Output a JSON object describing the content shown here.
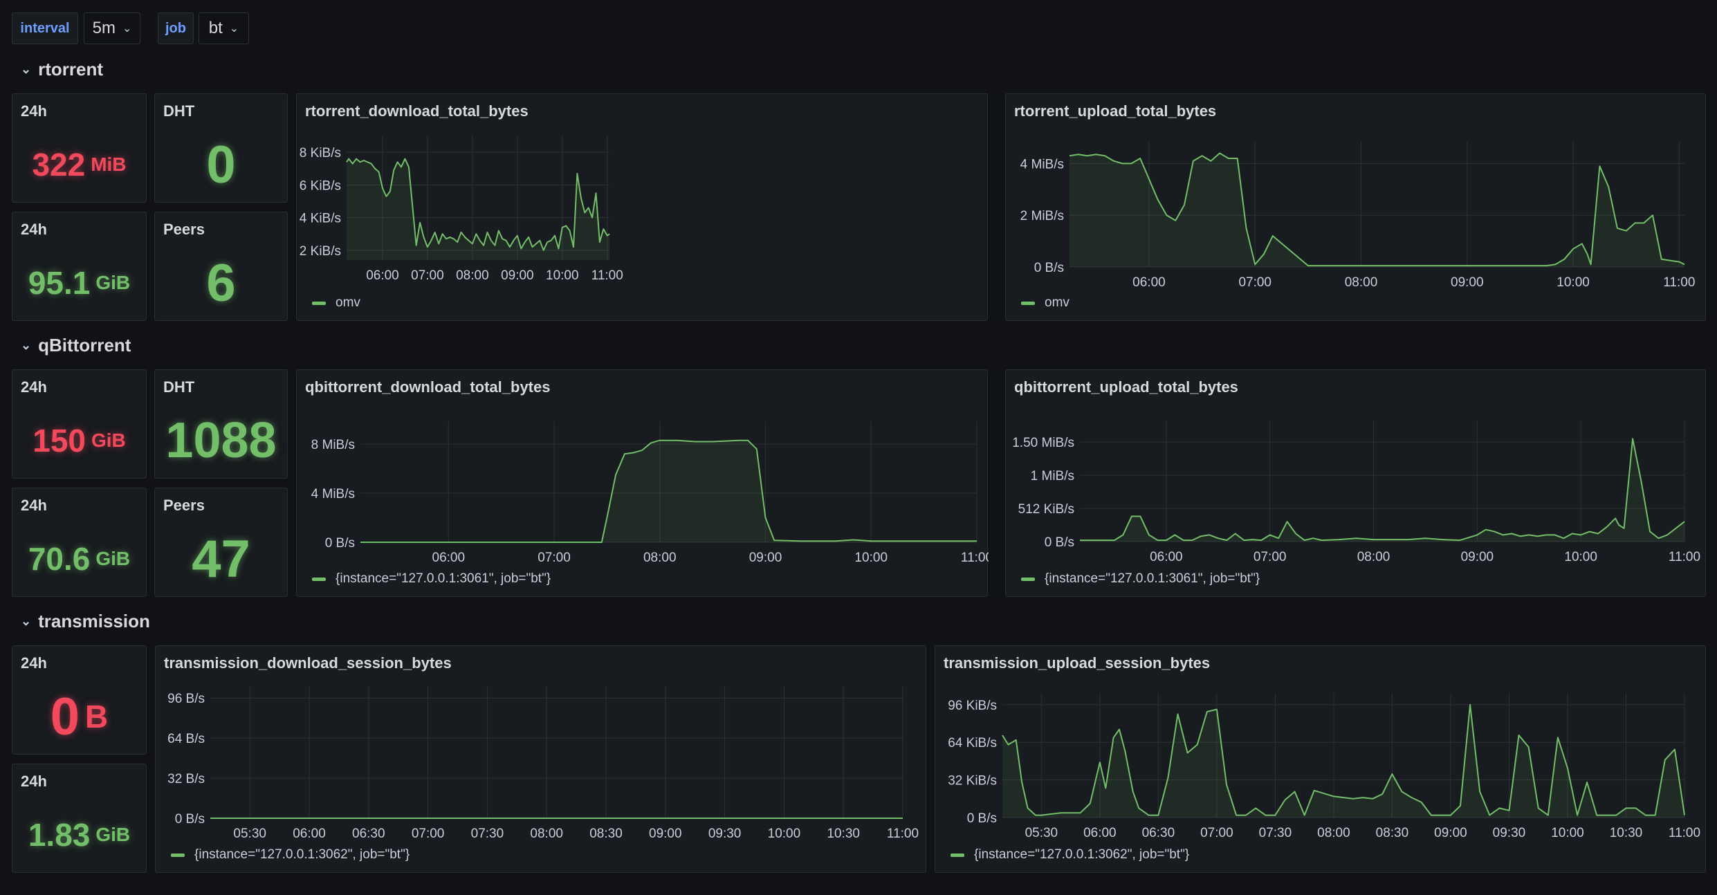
{
  "variables": [
    {
      "label": "interval",
      "value": "5m"
    },
    {
      "label": "job",
      "value": "bt"
    }
  ],
  "rows": [
    {
      "title": "rtorrent",
      "stats": {
        "download_24h": {
          "title": "24h",
          "value": "322",
          "unit": "MiB"
        },
        "upload_24h": {
          "title": "24h",
          "value": "95.1",
          "unit": "GiB"
        },
        "dht": {
          "title": "DHT",
          "value": "0"
        },
        "peers": {
          "title": "Peers",
          "value": "6"
        }
      },
      "charts": [
        {
          "title": "rtorrent_download_total_bytes",
          "legend": "omv"
        },
        {
          "title": "rtorrent_upload_total_bytes",
          "legend": "omv"
        }
      ]
    },
    {
      "title": "qBittorrent",
      "stats": {
        "download_24h": {
          "title": "24h",
          "value": "150",
          "unit": "GiB"
        },
        "upload_24h": {
          "title": "24h",
          "value": "70.6",
          "unit": "GiB"
        },
        "dht": {
          "title": "DHT",
          "value": "1088"
        },
        "peers": {
          "title": "Peers",
          "value": "47"
        }
      },
      "charts": [
        {
          "title": "qbittorrent_download_total_bytes",
          "legend": "{instance=\"127.0.0.1:3061\", job=\"bt\"}"
        },
        {
          "title": "qbittorrent_upload_total_bytes",
          "legend": "{instance=\"127.0.0.1:3061\", job=\"bt\"}"
        }
      ]
    },
    {
      "title": "transmission",
      "stats": {
        "download_24h": {
          "title": "24h",
          "value": "0",
          "unit": "B"
        },
        "upload_24h": {
          "title": "24h",
          "value": "1.83",
          "unit": "GiB"
        }
      },
      "charts": [
        {
          "title": "transmission_download_session_bytes",
          "legend": "{instance=\"127.0.0.1:3062\", job=\"bt\"}"
        },
        {
          "title": "transmission_upload_session_bytes",
          "legend": "{instance=\"127.0.0.1:3062\", job=\"bt\"}"
        }
      ]
    }
  ],
  "colors": {
    "series": "#73bf69",
    "down": "#f2495c",
    "up": "#73bf69",
    "grid": "#2c3036"
  },
  "chart_data": [
    {
      "id": "rt_down",
      "type": "area",
      "title": "rtorrent_download_total_bytes",
      "unit": "KiB/s",
      "x_ticks": [
        "06:00",
        "07:00",
        "08:00",
        "09:00",
        "10:00",
        "11:00"
      ],
      "x_range": [
        "05:12",
        "11:03"
      ],
      "y_ticks": [
        {
          "v": 2,
          "label": "2 KiB/s"
        },
        {
          "v": 4,
          "label": "4 KiB/s"
        },
        {
          "v": 6,
          "label": "6 KiB/s"
        },
        {
          "v": 8,
          "label": "8 KiB/s"
        }
      ],
      "ylim": [
        1.4,
        8.6
      ],
      "series": [
        {
          "name": "omv",
          "x": [
            "05:12",
            "05:15",
            "05:20",
            "05:25",
            "05:30",
            "05:35",
            "05:40",
            "05:45",
            "05:50",
            "05:55",
            "06:00",
            "06:05",
            "06:10",
            "06:15",
            "06:20",
            "06:25",
            "06:30",
            "06:35",
            "06:40",
            "06:45",
            "06:50",
            "06:55",
            "07:00",
            "07:05",
            "07:10",
            "07:15",
            "07:20",
            "07:25",
            "07:30",
            "07:35",
            "07:40",
            "07:45",
            "07:50",
            "07:55",
            "08:00",
            "08:05",
            "08:10",
            "08:15",
            "08:20",
            "08:25",
            "08:30",
            "08:35",
            "08:40",
            "08:45",
            "08:50",
            "08:55",
            "09:00",
            "09:05",
            "09:10",
            "09:15",
            "09:20",
            "09:25",
            "09:30",
            "09:35",
            "09:40",
            "09:45",
            "09:50",
            "09:55",
            "10:00",
            "10:05",
            "10:10",
            "10:15",
            "10:20",
            "10:25",
            "10:30",
            "10:35",
            "10:40",
            "10:45",
            "10:50",
            "10:55",
            "11:00",
            "11:03"
          ],
          "values": [
            7.4,
            7.6,
            7.3,
            7.6,
            7.4,
            7.5,
            7.4,
            7.3,
            7.0,
            6.8,
            5.8,
            5.3,
            5.6,
            6.9,
            7.4,
            7.1,
            7.6,
            7.1,
            4.7,
            2.3,
            3.7,
            2.8,
            2.2,
            2.6,
            3.1,
            2.4,
            3.0,
            2.7,
            2.8,
            2.7,
            2.5,
            3.1,
            2.8,
            2.6,
            2.4,
            3.0,
            2.6,
            2.3,
            3.1,
            2.6,
            2.3,
            3.2,
            2.7,
            2.6,
            2.2,
            2.6,
            2.9,
            2.1,
            2.5,
            2.8,
            2.2,
            2.4,
            2.6,
            2.0,
            2.5,
            2.6,
            2.9,
            2.1,
            3.4,
            3.5,
            3.2,
            2.2,
            6.7,
            5.2,
            4.3,
            4.6,
            4.0,
            5.5,
            2.5,
            3.3,
            2.9,
            3.0
          ]
        }
      ]
    },
    {
      "id": "rt_up",
      "type": "area",
      "title": "rtorrent_upload_total_bytes",
      "unit": "MiB/s",
      "x_ticks": [
        "06:00",
        "07:00",
        "08:00",
        "09:00",
        "10:00",
        "11:00"
      ],
      "x_range": [
        "05:15",
        "11:03"
      ],
      "y_ticks": [
        {
          "v": 0,
          "label": "0 B/s"
        },
        {
          "v": 2,
          "label": "2 MiB/s"
        },
        {
          "v": 4,
          "label": "4 MiB/s"
        }
      ],
      "ylim": [
        0,
        4.6
      ],
      "series": [
        {
          "name": "omv",
          "x": [
            "05:15",
            "05:20",
            "05:25",
            "05:30",
            "05:35",
            "05:40",
            "05:45",
            "05:50",
            "05:55",
            "06:00",
            "06:05",
            "06:10",
            "06:15",
            "06:20",
            "06:25",
            "06:30",
            "06:35",
            "06:40",
            "06:45",
            "06:50",
            "06:55",
            "07:00",
            "07:05",
            "07:10",
            "07:30",
            "08:00",
            "08:30",
            "09:00",
            "09:30",
            "09:45",
            "09:50",
            "09:55",
            "10:00",
            "10:05",
            "10:08",
            "10:10",
            "10:15",
            "10:20",
            "10:25",
            "10:30",
            "10:35",
            "10:40",
            "10:45",
            "10:50",
            "10:55",
            "11:00",
            "11:03"
          ],
          "values": [
            4.3,
            4.35,
            4.3,
            4.35,
            4.3,
            4.1,
            4.0,
            4.0,
            4.2,
            3.4,
            2.6,
            2.0,
            1.8,
            2.4,
            4.1,
            4.3,
            4.1,
            4.4,
            4.2,
            4.2,
            1.5,
            0.1,
            0.5,
            1.2,
            0.05,
            0.05,
            0.05,
            0.05,
            0.05,
            0.05,
            0.1,
            0.3,
            0.7,
            0.9,
            0.5,
            0.1,
            3.9,
            3.1,
            1.5,
            1.4,
            1.7,
            1.7,
            2.0,
            0.3,
            0.25,
            0.2,
            0.1
          ]
        }
      ]
    },
    {
      "id": "qb_down",
      "type": "area",
      "title": "qbittorrent_download_total_bytes",
      "unit": "MiB/s",
      "x_ticks": [
        "06:00",
        "07:00",
        "08:00",
        "09:00",
        "10:00",
        "11:00"
      ],
      "x_range": [
        "05:10",
        "11:00"
      ],
      "y_ticks": [
        {
          "v": 0,
          "label": "0 B/s"
        },
        {
          "v": 4,
          "label": "4 MiB/s"
        },
        {
          "v": 8,
          "label": "8 MiB/s"
        }
      ],
      "ylim": [
        0,
        9.3
      ],
      "series": [
        {
          "name": "{instance=\"127.0.0.1:3061\", job=\"bt\"}",
          "x": [
            "05:10",
            "06:00",
            "07:00",
            "07:27",
            "07:30",
            "07:35",
            "07:40",
            "07:45",
            "07:50",
            "07:55",
            "08:00",
            "08:10",
            "08:20",
            "08:30",
            "08:45",
            "08:50",
            "08:55",
            "09:00",
            "09:05",
            "09:20",
            "09:40",
            "09:50",
            "10:00",
            "10:20",
            "11:00"
          ],
          "values": [
            0,
            0,
            0,
            0,
            2.0,
            5.5,
            7.2,
            7.3,
            7.5,
            8.1,
            8.3,
            8.3,
            8.2,
            8.2,
            8.3,
            8.3,
            7.6,
            2.0,
            0.15,
            0.1,
            0.1,
            0.2,
            0.1,
            0.1,
            0.1
          ]
        }
      ]
    },
    {
      "id": "qb_up",
      "type": "area",
      "title": "qbittorrent_upload_total_bytes",
      "unit": "MiB/s",
      "x_ticks": [
        "06:00",
        "07:00",
        "08:00",
        "09:00",
        "10:00",
        "11:00"
      ],
      "x_range": [
        "05:10",
        "11:00"
      ],
      "y_ticks": [
        {
          "v": 0,
          "label": "0 B/s"
        },
        {
          "v": 0.5,
          "label": "512 KiB/s"
        },
        {
          "v": 1,
          "label": "1 MiB/s"
        },
        {
          "v": 1.5,
          "label": "1.50 MiB/s"
        }
      ],
      "ylim": [
        0,
        1.72
      ],
      "series": [
        {
          "name": "{instance=\"127.0.0.1:3061\", job=\"bt\"}",
          "x": [
            "05:10",
            "05:30",
            "05:35",
            "05:40",
            "05:45",
            "05:50",
            "05:55",
            "06:00",
            "06:05",
            "06:10",
            "06:15",
            "06:20",
            "06:25",
            "06:30",
            "06:35",
            "06:40",
            "06:45",
            "06:50",
            "06:55",
            "07:00",
            "07:05",
            "07:10",
            "07:15",
            "07:20",
            "07:25",
            "07:30",
            "07:40",
            "07:50",
            "08:00",
            "08:10",
            "08:20",
            "08:30",
            "08:40",
            "08:50",
            "09:00",
            "09:05",
            "09:10",
            "09:15",
            "09:20",
            "09:25",
            "09:30",
            "09:35",
            "09:40",
            "09:45",
            "09:50",
            "09:55",
            "10:00",
            "10:05",
            "10:10",
            "10:15",
            "10:20",
            "10:22",
            "10:25",
            "10:30",
            "10:35",
            "10:40",
            "10:45",
            "10:50",
            "11:00"
          ],
          "values": [
            0.02,
            0.02,
            0.1,
            0.38,
            0.38,
            0.1,
            0.02,
            0.02,
            0.1,
            0.02,
            0.02,
            0.08,
            0.1,
            0.05,
            0.02,
            0.12,
            0.02,
            0.03,
            0.02,
            0.1,
            0.05,
            0.3,
            0.12,
            0.02,
            0.05,
            0.02,
            0.03,
            0.05,
            0.03,
            0.03,
            0.03,
            0.05,
            0.03,
            0.02,
            0.1,
            0.18,
            0.15,
            0.1,
            0.12,
            0.08,
            0.1,
            0.08,
            0.1,
            0.1,
            0.05,
            0.12,
            0.1,
            0.15,
            0.12,
            0.22,
            0.35,
            0.25,
            0.2,
            1.55,
            0.9,
            0.15,
            0.05,
            0.1,
            0.3
          ]
        }
      ]
    },
    {
      "id": "tr_down",
      "type": "area",
      "title": "transmission_download_session_bytes",
      "unit": "B/s",
      "x_ticks": [
        "05:30",
        "06:00",
        "06:30",
        "07:00",
        "07:30",
        "08:00",
        "08:30",
        "09:00",
        "09:30",
        "10:00",
        "10:30",
        "11:00"
      ],
      "x_range": [
        "05:10",
        "11:00"
      ],
      "y_ticks": [
        {
          "v": 0,
          "label": "0 B/s"
        },
        {
          "v": 32,
          "label": "32 B/s"
        },
        {
          "v": 64,
          "label": "64 B/s"
        },
        {
          "v": 96,
          "label": "96 B/s"
        }
      ],
      "ylim": [
        0,
        100
      ],
      "series": [
        {
          "name": "{instance=\"127.0.0.1:3062\", job=\"bt\"}",
          "x": [
            "05:10",
            "11:00"
          ],
          "values": [
            0,
            0
          ]
        }
      ]
    },
    {
      "id": "tr_up",
      "type": "area",
      "title": "transmission_upload_session_bytes",
      "unit": "KiB/s",
      "x_ticks": [
        "05:30",
        "06:00",
        "06:30",
        "07:00",
        "07:30",
        "08:00",
        "08:30",
        "09:00",
        "09:30",
        "10:00",
        "10:30",
        "11:00"
      ],
      "x_range": [
        "05:10",
        "11:00"
      ],
      "y_ticks": [
        {
          "v": 0,
          "label": "0 B/s"
        },
        {
          "v": 32,
          "label": "32 KiB/s"
        },
        {
          "v": 64,
          "label": "64 KiB/s"
        },
        {
          "v": 96,
          "label": "96 KiB/s"
        }
      ],
      "ylim": [
        0,
        100
      ],
      "series": [
        {
          "name": "{instance=\"127.0.0.1:3062\", job=\"bt\"}",
          "x": [
            "05:10",
            "05:13",
            "05:17",
            "05:20",
            "05:23",
            "05:27",
            "05:30",
            "05:40",
            "05:50",
            "05:55",
            "06:00",
            "06:03",
            "06:07",
            "06:10",
            "06:13",
            "06:17",
            "06:20",
            "06:25",
            "06:30",
            "06:35",
            "06:40",
            "06:45",
            "06:50",
            "06:55",
            "07:00",
            "07:05",
            "07:10",
            "07:15",
            "07:20",
            "07:25",
            "07:30",
            "07:35",
            "07:40",
            "07:45",
            "07:50",
            "08:00",
            "08:10",
            "08:15",
            "08:20",
            "08:25",
            "08:30",
            "08:35",
            "08:40",
            "08:45",
            "08:50",
            "08:55",
            "09:00",
            "09:05",
            "09:10",
            "09:15",
            "09:20",
            "09:25",
            "09:30",
            "09:35",
            "09:40",
            "09:45",
            "09:50",
            "09:55",
            "10:00",
            "10:05",
            "10:10",
            "10:15",
            "10:20",
            "10:25",
            "10:30",
            "10:35",
            "10:40",
            "10:45",
            "10:50",
            "10:55",
            "11:00"
          ],
          "values": [
            70,
            62,
            66,
            30,
            8,
            2,
            2,
            4,
            4,
            12,
            47,
            25,
            68,
            75,
            56,
            22,
            8,
            2,
            2,
            34,
            88,
            55,
            62,
            90,
            92,
            28,
            2,
            2,
            8,
            2,
            2,
            15,
            22,
            2,
            23,
            18,
            16,
            17,
            16,
            20,
            37,
            22,
            17,
            13,
            2,
            2,
            2,
            10,
            96,
            22,
            2,
            8,
            6,
            70,
            60,
            8,
            2,
            68,
            42,
            2,
            30,
            2,
            2,
            2,
            8,
            8,
            2,
            2,
            49,
            58,
            2
          ]
        }
      ]
    }
  ]
}
